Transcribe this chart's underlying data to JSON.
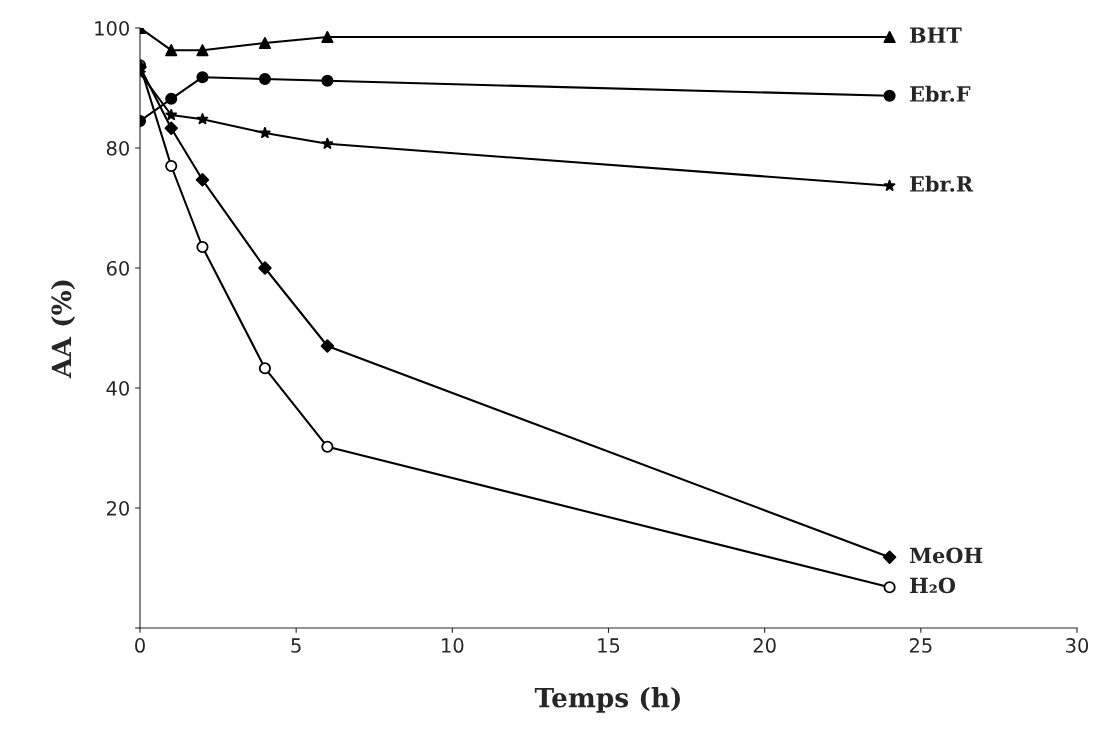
{
  "chart_data": {
    "type": "line",
    "xlabel": "Temps (h)",
    "ylabel": "AA (%)",
    "x": [
      0,
      1,
      2,
      4,
      6,
      24
    ],
    "series": [
      {
        "name": "BHT",
        "color": "#000000",
        "marker": "triangle",
        "values": [
          100,
          96.3,
          96.3,
          97.5,
          98.5,
          98.5
        ]
      },
      {
        "name": "Ebr.F",
        "color": "#000000",
        "marker": "circle",
        "values": [
          84.5,
          88.2,
          91.8,
          91.5,
          91.2,
          88.7
        ]
      },
      {
        "name": "Ebr.R",
        "color": "#000000",
        "marker": "star",
        "values": [
          92.5,
          85.5,
          84.8,
          82.5,
          80.7,
          73.7
        ]
      },
      {
        "name": "MeOH",
        "color": "#000000",
        "marker": "diamond",
        "values": [
          93.5,
          83.3,
          74.7,
          60,
          47,
          11.8
        ]
      },
      {
        "name": "H₂O",
        "color": "#000000",
        "marker": "open circle",
        "values": [
          93.8,
          77,
          63.5,
          43.3,
          30.2,
          6.8
        ]
      }
    ],
    "xlim": [
      0,
      30
    ],
    "xticks": [
      0,
      5,
      10,
      15,
      20,
      25,
      30
    ],
    "ylim": [
      0,
      100
    ],
    "yticks": [
      {
        "value": 0,
        "label": null
      },
      20,
      40,
      60,
      80,
      100
    ],
    "grid": false,
    "legend": false,
    "line_style": "solid"
  }
}
